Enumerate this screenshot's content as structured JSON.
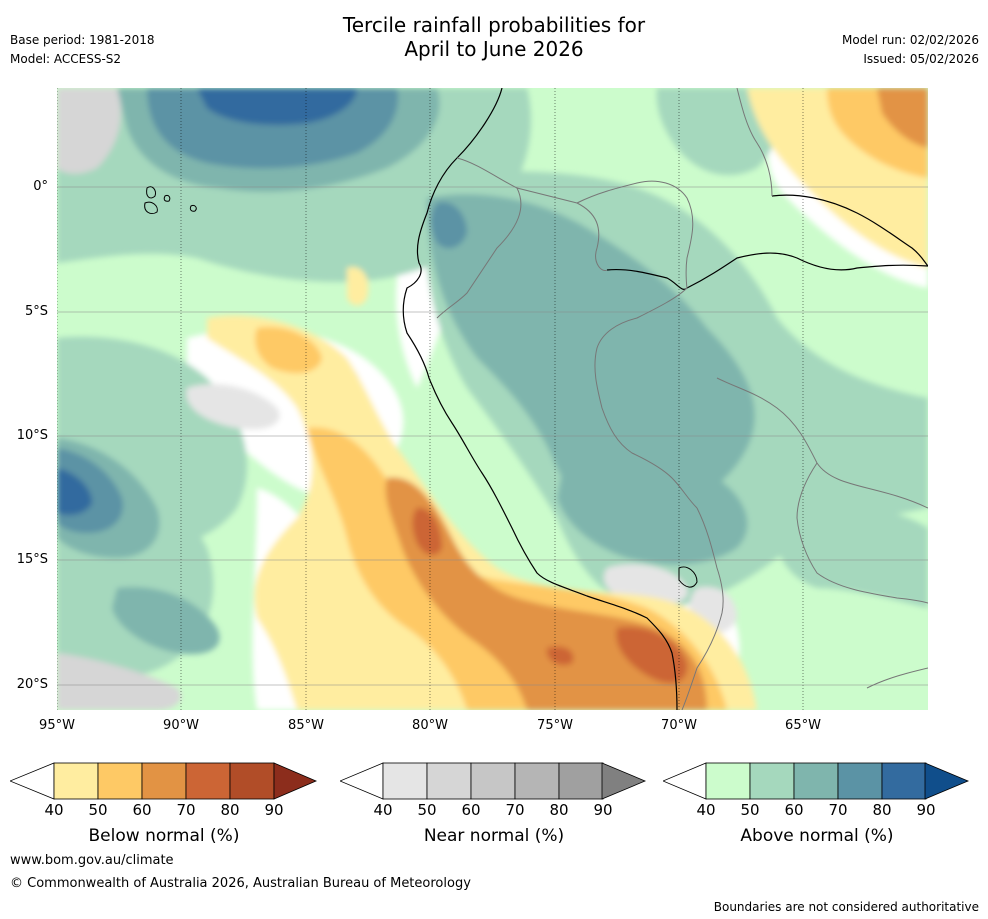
{
  "title_line1": "Tercile rainfall probabilities for",
  "title_line2": "April to June 2026",
  "base_period": "Base period: 1981-2018",
  "model": "Model: ACCESS-S2",
  "model_run": "Model run: 02/02/2026",
  "issued": "Issued: 05/02/2026",
  "axes": {
    "lon_labels": [
      "95°W",
      "90°W",
      "85°W",
      "80°W",
      "75°W",
      "70°W",
      "65°W"
    ],
    "lat_labels": [
      "0°",
      "5°S",
      "10°S",
      "15°S",
      "20°S"
    ]
  },
  "colorbars": [
    {
      "name": "below",
      "title": "Below normal (%)",
      "ticks": [
        "40",
        "50",
        "60",
        "70",
        "80",
        "90"
      ],
      "colors": [
        "#ffeda0",
        "#fec965",
        "#e29344",
        "#cc6535",
        "#b14d28"
      ],
      "extend_color": "#8c2d1c"
    },
    {
      "name": "near",
      "title": "Near normal (%)",
      "ticks": [
        "40",
        "50",
        "60",
        "70",
        "80",
        "90"
      ],
      "colors": [
        "#e5e5e5",
        "#d6d6d6",
        "#c6c6c6",
        "#b5b5b5",
        "#a0a0a0"
      ],
      "extend_color": "#808080"
    },
    {
      "name": "above",
      "title": "Above normal (%)",
      "ticks": [
        "40",
        "50",
        "60",
        "70",
        "80",
        "90"
      ],
      "colors": [
        "#ccfccc",
        "#a5d8bd",
        "#7fb5ad",
        "#5b93a5",
        "#336b9f"
      ],
      "extend_color": "#104e8b"
    }
  ],
  "footer": {
    "url": "www.bom.gov.au/climate",
    "copyright": "© Commonwealth of Australia 2026, Australian Bureau of Meteorology",
    "disclaimer": "Boundaries are not considered authoritative"
  }
}
